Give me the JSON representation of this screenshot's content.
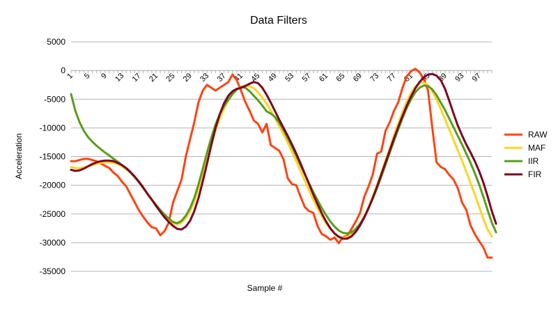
{
  "chart_data": {
    "type": "line",
    "title": "Data Filters",
    "xlabel": "Sample #",
    "ylabel": "Acceleration",
    "ylim": [
      -35000,
      5000
    ],
    "yticks": [
      5000,
      0,
      -5000,
      -10000,
      -15000,
      -20000,
      -25000,
      -30000,
      -35000
    ],
    "xlim": [
      1,
      100
    ],
    "xticks": [
      1,
      5,
      9,
      13,
      17,
      21,
      25,
      29,
      33,
      37,
      41,
      45,
      49,
      53,
      57,
      61,
      65,
      69,
      73,
      77,
      81,
      85,
      89,
      93,
      97
    ],
    "grid": "horizontal",
    "legend_position": "right",
    "series": [
      {
        "name": "RAW",
        "color": "#ff420e",
        "values": [
          -15800,
          -15800,
          -15600,
          -15400,
          -15400,
          -15600,
          -15800,
          -16200,
          -16600,
          -17000,
          -17800,
          -18400,
          -19400,
          -20200,
          -21600,
          -23000,
          -24400,
          -25500,
          -26500,
          -27300,
          -27500,
          -28700,
          -28000,
          -26500,
          -23000,
          -21000,
          -19000,
          -15000,
          -12000,
          -9000,
          -5500,
          -3500,
          -2500,
          -3000,
          -3500,
          -3000,
          -2500,
          -2000,
          -700,
          -1700,
          -3500,
          -5500,
          -7000,
          -8700,
          -9300,
          -10800,
          -9300,
          -13000,
          -13500,
          -14000,
          -15500,
          -18800,
          -19800,
          -20000,
          -22000,
          -23800,
          -24500,
          -24800,
          -27100,
          -28500,
          -28900,
          -29500,
          -29100,
          -30100,
          -29000,
          -28800,
          -27600,
          -26300,
          -24800,
          -22000,
          -20200,
          -18100,
          -14500,
          -14100,
          -10500,
          -9000,
          -7000,
          -5500,
          -3000,
          -1000,
          -100,
          300,
          -300,
          -1500,
          -3500,
          -10000,
          -16000,
          -16800,
          -17200,
          -18200,
          -19000,
          -20500,
          -23000,
          -24300,
          -27000,
          -28500,
          -29700,
          -30800,
          -32600,
          -32600
        ]
      },
      {
        "name": "MAF",
        "color": "#ffd320",
        "values": [
          -16800,
          -17000,
          -17000,
          -16900,
          -16700,
          -16500,
          -16300,
          -16100,
          -16000,
          -16000,
          -16100,
          -16300,
          -16700,
          -17200,
          -17800,
          -18600,
          -19500,
          -20500,
          -21600,
          -22600,
          -23600,
          -24600,
          -25500,
          -26200,
          -26700,
          -26800,
          -26500,
          -25700,
          -24500,
          -22800,
          -20600,
          -18000,
          -15400,
          -12800,
          -10400,
          -8300,
          -6600,
          -5200,
          -4100,
          -3300,
          -2800,
          -2600,
          -2700,
          -3100,
          -3800,
          -4700,
          -5800,
          -7000,
          -8300,
          -9700,
          -11100,
          -12600,
          -14200,
          -15800,
          -17500,
          -19200,
          -20900,
          -22500,
          -24000,
          -25400,
          -26600,
          -27600,
          -28400,
          -28900,
          -29100,
          -29000,
          -28600,
          -27900,
          -26800,
          -25400,
          -23800,
          -22000,
          -20000,
          -17900,
          -15700,
          -13500,
          -11300,
          -9200,
          -7200,
          -5400,
          -3900,
          -2800,
          -2200,
          -2100,
          -2600,
          -3600,
          -5000,
          -6700,
          -8500,
          -10300,
          -12100,
          -13900,
          -15700,
          -17600,
          -19600,
          -21600,
          -23700,
          -25800,
          -27700,
          -28900
        ]
      },
      {
        "name": "IIR",
        "color": "#579d1c",
        "values": [
          -4100,
          -7000,
          -9000,
          -10500,
          -11600,
          -12400,
          -13100,
          -13700,
          -14300,
          -14800,
          -15400,
          -15900,
          -16500,
          -17100,
          -17800,
          -18600,
          -19500,
          -20500,
          -21500,
          -22500,
          -23400,
          -24300,
          -25100,
          -25800,
          -26400,
          -26600,
          -26200,
          -25300,
          -24000,
          -22200,
          -19800,
          -17100,
          -14300,
          -11700,
          -9400,
          -7600,
          -6200,
          -5100,
          -4100,
          -3300,
          -2900,
          -3000,
          -3600,
          -4400,
          -5200,
          -6100,
          -7100,
          -7500,
          -8100,
          -9100,
          -10400,
          -11800,
          -13300,
          -14900,
          -16500,
          -18100,
          -19700,
          -21200,
          -22600,
          -24000,
          -25200,
          -26300,
          -27200,
          -27900,
          -28300,
          -28400,
          -28200,
          -27600,
          -26700,
          -25500,
          -24000,
          -22300,
          -20500,
          -18500,
          -16400,
          -14300,
          -12200,
          -10200,
          -8300,
          -6500,
          -5000,
          -3800,
          -3000,
          -2600,
          -2700,
          -3300,
          -4300,
          -5600,
          -6900,
          -8400,
          -9900,
          -11400,
          -12900,
          -14500,
          -16100,
          -17900,
          -19800,
          -22000,
          -24300,
          -26500,
          -28200
        ]
      },
      {
        "name": "FIR",
        "color": "#7e0021",
        "values": [
          -17300,
          -17500,
          -17400,
          -17100,
          -16700,
          -16300,
          -16000,
          -15800,
          -15700,
          -15700,
          -15800,
          -16100,
          -16500,
          -17000,
          -17700,
          -18500,
          -19400,
          -20400,
          -21500,
          -22500,
          -23600,
          -24600,
          -25600,
          -26400,
          -27100,
          -27600,
          -27700,
          -27200,
          -26200,
          -24500,
          -22200,
          -19300,
          -16200,
          -13000,
          -10000,
          -7600,
          -5700,
          -4400,
          -3600,
          -3200,
          -3000,
          -2700,
          -2300,
          -2000,
          -2200,
          -3000,
          -4200,
          -5600,
          -7100,
          -8600,
          -10000,
          -11400,
          -12900,
          -14500,
          -16200,
          -18000,
          -19800,
          -21600,
          -23300,
          -24900,
          -26300,
          -27500,
          -28400,
          -29000,
          -29300,
          -29300,
          -28900,
          -28100,
          -27000,
          -25600,
          -24000,
          -22200,
          -20200,
          -18100,
          -16000,
          -13900,
          -11800,
          -9800,
          -7900,
          -6100,
          -4500,
          -3100,
          -2000,
          -1200,
          -700,
          -600,
          -900,
          -1700,
          -3200,
          -5300,
          -7500,
          -9600,
          -11300,
          -12900,
          -14300,
          -15800,
          -17500,
          -19500,
          -21900,
          -24500,
          -26700
        ]
      }
    ]
  }
}
